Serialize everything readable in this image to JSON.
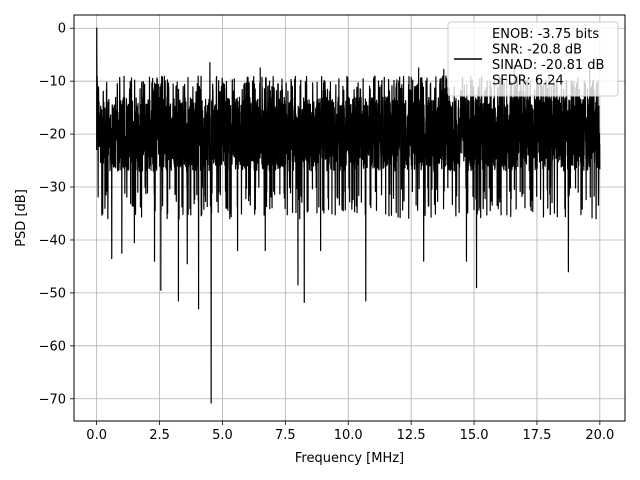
{
  "chart_data": {
    "type": "line",
    "xlabel": "Frequency [MHz]",
    "ylabel": "PSD [dB]",
    "xlim": [
      -0.9,
      21.0
    ],
    "ylim": [
      -74.2,
      2.5
    ],
    "x_ticks": [
      0.0,
      2.5,
      5.0,
      7.5,
      10.0,
      12.5,
      15.0,
      17.5,
      20.0
    ],
    "x_tick_labels": [
      "0.0",
      "2.5",
      "5.0",
      "7.5",
      "10.0",
      "12.5",
      "15.0",
      "17.5",
      "20.0"
    ],
    "y_ticks": [
      0,
      -10,
      -20,
      -30,
      -40,
      -50,
      -60,
      -70
    ],
    "y_tick_labels": [
      "0",
      "−10",
      "−20",
      "−30",
      "−40",
      "−50",
      "−60",
      "−70"
    ],
    "grid": true,
    "legend_position": "top-right",
    "legend_lines": [
      "ENOB: -3.75 bits",
      "SNR: -20.8 dB",
      "SINAD: -20.81 dB",
      "SFDR: 6.24"
    ],
    "series": [
      {
        "color": "#000000",
        "x_range": [
          0.0,
          20.0
        ],
        "num_points": 4000,
        "noise_floor_db": -20,
        "noise_upper_db": -12,
        "noise_lower_typical_db": -30,
        "peaks": [
          {
            "x": 0.0,
            "y": 0.0
          },
          {
            "x": 4.5,
            "y": -6.5
          },
          {
            "x": 6.5,
            "y": -7.5
          },
          {
            "x": 12.8,
            "y": -7.5
          },
          {
            "x": 13.8,
            "y": -7.8
          },
          {
            "x": 16.6,
            "y": -7.0
          },
          {
            "x": 19.6,
            "y": -7.8
          }
        ],
        "dips": [
          {
            "x": 0.6,
            "y": -43.5
          },
          {
            "x": 1.0,
            "y": -42.5
          },
          {
            "x": 1.5,
            "y": -40.5
          },
          {
            "x": 2.3,
            "y": -44.0
          },
          {
            "x": 2.55,
            "y": -49.5
          },
          {
            "x": 3.25,
            "y": -51.5
          },
          {
            "x": 3.6,
            "y": -44.5
          },
          {
            "x": 4.05,
            "y": -53.0
          },
          {
            "x": 4.55,
            "y": -70.8
          },
          {
            "x": 5.6,
            "y": -42.0
          },
          {
            "x": 6.7,
            "y": -42.0
          },
          {
            "x": 8.0,
            "y": -48.5
          },
          {
            "x": 8.25,
            "y": -51.8
          },
          {
            "x": 8.9,
            "y": -42.0
          },
          {
            "x": 10.7,
            "y": -51.5
          },
          {
            "x": 13.0,
            "y": -44.0
          },
          {
            "x": 14.7,
            "y": -44.0
          },
          {
            "x": 15.1,
            "y": -49.0
          },
          {
            "x": 18.75,
            "y": -46.0
          }
        ]
      }
    ]
  }
}
